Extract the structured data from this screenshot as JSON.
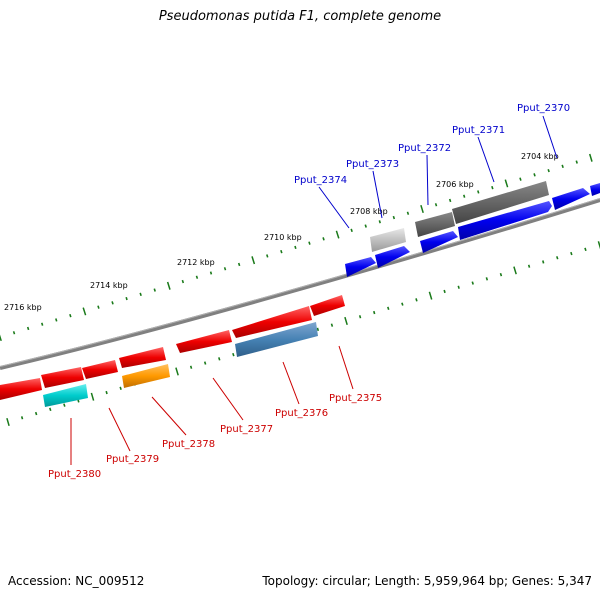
{
  "title": "Pseudomonas putida F1, complete genome",
  "accession_label": "Accession: NC_009512",
  "topology_label": "Topology: circular; Length: 5,959,964 bp; Genes: 5,347",
  "kbp_labels": [
    "2704 kbp",
    "2706 kbp",
    "2708 kbp",
    "2710 kbp",
    "2712 kbp",
    "2714 kbp",
    "2716 kbp"
  ],
  "colors": {
    "backbone": "#808080",
    "tick": "#1a7a1a",
    "forward_gene": "#0000ee",
    "reverse_gene": "#ee0000",
    "forward_label": "#0000cc",
    "reverse_label": "#cc0000"
  },
  "forward_labels": [
    "Pput_2370",
    "Pput_2371",
    "Pput_2372",
    "Pput_2373",
    "Pput_2374"
  ],
  "reverse_labels": [
    "Pput_2375",
    "Pput_2376",
    "Pput_2377",
    "Pput_2378",
    "Pput_2379",
    "Pput_2380"
  ]
}
